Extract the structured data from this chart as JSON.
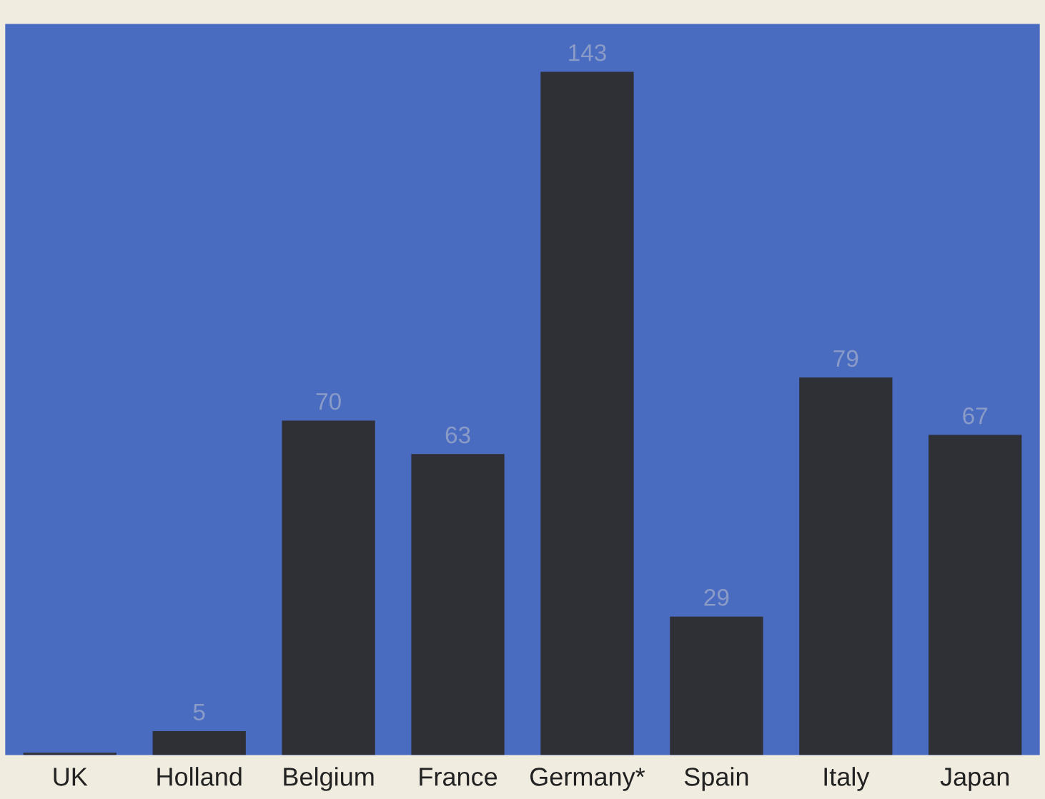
{
  "chart_data": {
    "type": "bar",
    "categories": [
      "UK",
      "Holland",
      "Belgium",
      "France",
      "Germany*",
      "Spain",
      "Italy",
      "Japan"
    ],
    "values": [
      0.5,
      5,
      70,
      63,
      143,
      29,
      79,
      67
    ],
    "value_labels": [
      null,
      "5",
      "70",
      "63",
      "143",
      "29",
      "79",
      "67"
    ],
    "color": "#2f2f36",
    "grid": false
  }
}
